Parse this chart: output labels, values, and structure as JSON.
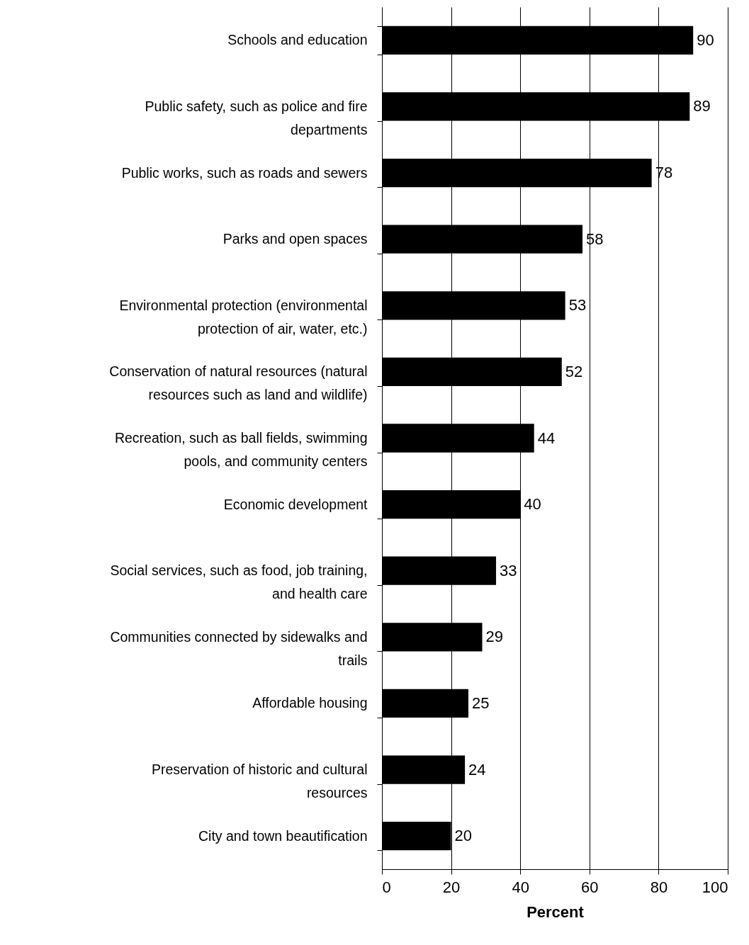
{
  "chart_data": {
    "type": "bar",
    "orientation": "horizontal",
    "xlabel": "Percent",
    "categories": [
      "Schools and education",
      "Public safety, such as police and fire departments",
      "Public works, such as roads and sewers",
      "Parks and open spaces",
      "Environmental protection (environmental protection of air, water, etc.)",
      "Conservation of natural resources (natural resources such as land and wildlife)",
      "Recreation, such as ball fields, swimming pools, and community centers",
      "Economic development",
      "Social services, such as food, job training, and health care",
      "Communities connected by sidewalks and trails",
      "Affordable housing",
      "Preservation of historic and cultural resources",
      "City and town beautification"
    ],
    "values": [
      90,
      89,
      78,
      58,
      53,
      52,
      44,
      40,
      33,
      29,
      25,
      24,
      20
    ],
    "color": "#000000",
    "xlim": [
      0,
      100
    ],
    "xticks": [
      0,
      20,
      40,
      60,
      80,
      100
    ],
    "grid": "x",
    "data_labels": true
  }
}
